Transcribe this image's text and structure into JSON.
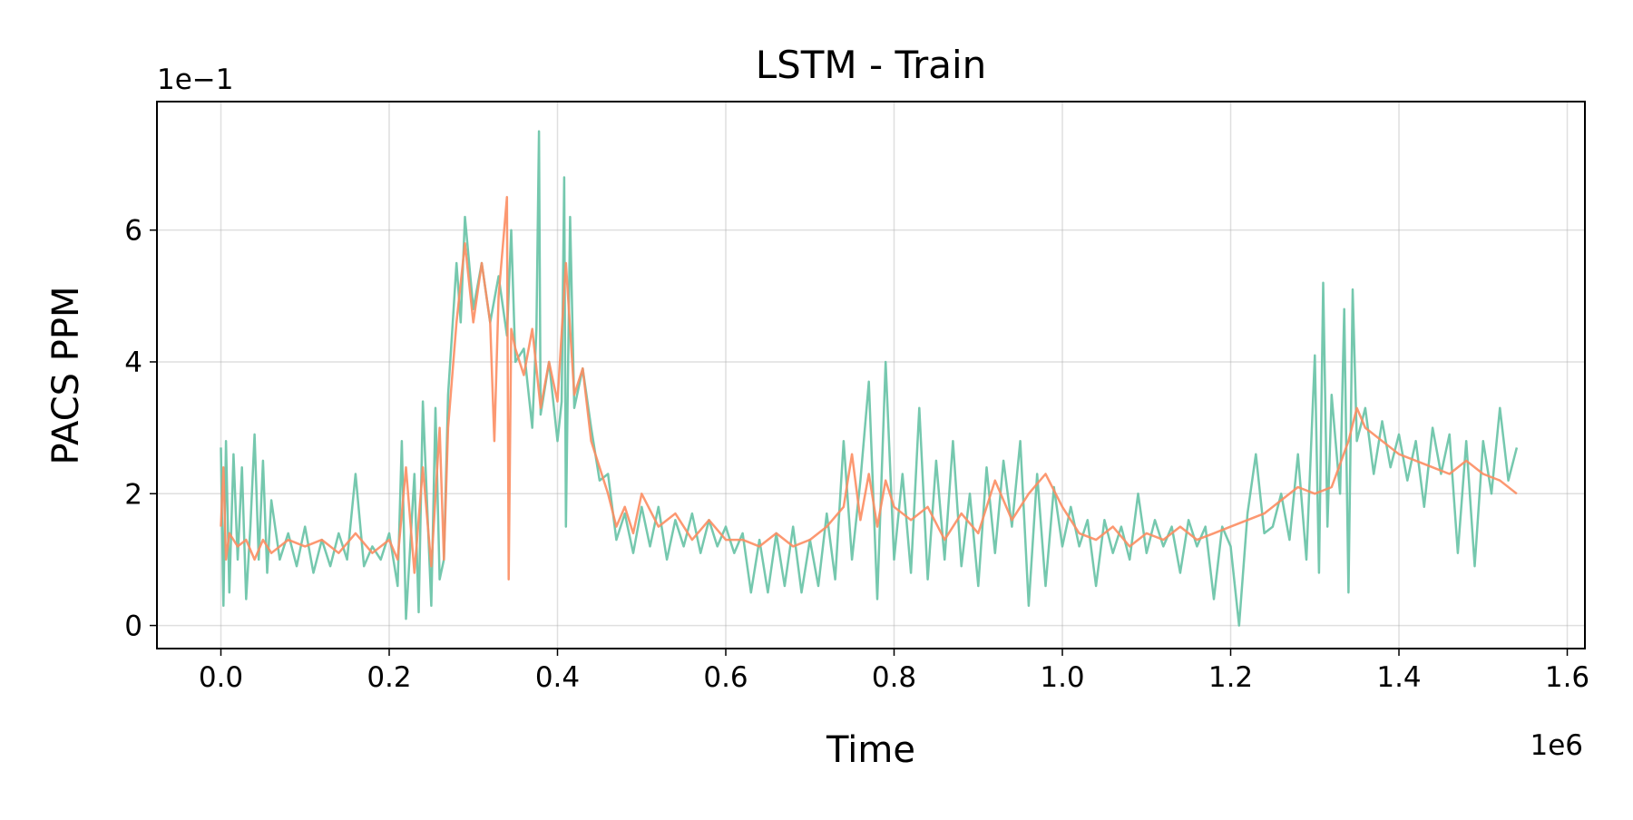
{
  "chart_data": {
    "type": "line",
    "title": "LSTM - Train",
    "xlabel": "Time",
    "ylabel": "PACS PPM",
    "x_offset_label": "1e6",
    "y_offset_label": "1e−1",
    "xlim": [
      -0.076,
      1.621
    ],
    "ylim": [
      -0.35,
      7.95
    ],
    "xticks": [
      {
        "value": 0,
        "label": "0.0"
      },
      {
        "value": 0.2,
        "label": "0.2"
      },
      {
        "value": 0.4,
        "label": "0.4"
      },
      {
        "value": 0.6,
        "label": "0.6"
      },
      {
        "value": 0.8,
        "label": "0.8"
      },
      {
        "value": 1.0,
        "label": "1.0"
      },
      {
        "value": 1.2,
        "label": "1.2"
      },
      {
        "value": 1.4,
        "label": "1.4"
      },
      {
        "value": 1.6,
        "label": "1.6"
      }
    ],
    "yticks": [
      0,
      2,
      4,
      6
    ],
    "grid": true,
    "series": [
      {
        "color": "#66c2a5",
        "x": [
          0,
          0.003,
          0.006,
          0.01,
          0.015,
          0.02,
          0.025,
          0.03,
          0.035,
          0.04,
          0.045,
          0.05,
          0.055,
          0.06,
          0.07,
          0.08,
          0.09,
          0.1,
          0.11,
          0.12,
          0.13,
          0.14,
          0.15,
          0.16,
          0.17,
          0.18,
          0.19,
          0.2,
          0.21,
          0.215,
          0.22,
          0.23,
          0.235,
          0.24,
          0.25,
          0.255,
          0.26,
          0.265,
          0.27,
          0.275,
          0.28,
          0.285,
          0.29,
          0.3,
          0.31,
          0.32,
          0.33,
          0.34,
          0.345,
          0.35,
          0.36,
          0.37,
          0.375,
          0.378,
          0.38,
          0.39,
          0.4,
          0.405,
          0.408,
          0.41,
          0.415,
          0.42,
          0.43,
          0.44,
          0.45,
          0.46,
          0.47,
          0.48,
          0.49,
          0.5,
          0.51,
          0.52,
          0.53,
          0.54,
          0.55,
          0.56,
          0.57,
          0.58,
          0.59,
          0.6,
          0.61,
          0.62,
          0.63,
          0.64,
          0.65,
          0.66,
          0.67,
          0.68,
          0.69,
          0.7,
          0.71,
          0.72,
          0.73,
          0.74,
          0.75,
          0.76,
          0.77,
          0.78,
          0.79,
          0.8,
          0.81,
          0.82,
          0.83,
          0.84,
          0.85,
          0.86,
          0.87,
          0.88,
          0.89,
          0.9,
          0.91,
          0.92,
          0.93,
          0.94,
          0.95,
          0.96,
          0.97,
          0.98,
          0.99,
          1.0,
          1.01,
          1.02,
          1.03,
          1.04,
          1.05,
          1.06,
          1.07,
          1.08,
          1.09,
          1.1,
          1.11,
          1.12,
          1.13,
          1.14,
          1.15,
          1.16,
          1.17,
          1.18,
          1.19,
          1.2,
          1.21,
          1.22,
          1.23,
          1.24,
          1.25,
          1.26,
          1.27,
          1.28,
          1.29,
          1.3,
          1.305,
          1.31,
          1.315,
          1.32,
          1.33,
          1.335,
          1.34,
          1.345,
          1.35,
          1.36,
          1.37,
          1.38,
          1.39,
          1.4,
          1.41,
          1.42,
          1.43,
          1.44,
          1.45,
          1.46,
          1.47,
          1.48,
          1.49,
          1.5,
          1.51,
          1.52,
          1.53,
          1.54
        ],
        "values": [
          2.7,
          0.3,
          2.8,
          0.5,
          2.6,
          1.0,
          2.4,
          0.4,
          1.5,
          2.9,
          1.0,
          2.5,
          0.8,
          1.9,
          1.0,
          1.4,
          0.9,
          1.5,
          0.8,
          1.3,
          0.9,
          1.4,
          1.0,
          2.3,
          0.9,
          1.2,
          1.0,
          1.4,
          0.6,
          2.8,
          0.1,
          2.3,
          0.2,
          3.4,
          0.3,
          3.3,
          0.7,
          1.0,
          3.5,
          4.5,
          5.5,
          4.6,
          6.2,
          4.8,
          5.5,
          4.6,
          5.3,
          4.4,
          6.0,
          4.0,
          4.2,
          3.0,
          4.5,
          7.5,
          3.2,
          4.0,
          2.8,
          3.4,
          6.8,
          1.5,
          6.2,
          3.3,
          3.9,
          3.0,
          2.2,
          2.3,
          1.3,
          1.7,
          1.1,
          1.8,
          1.2,
          1.8,
          1.0,
          1.6,
          1.2,
          1.7,
          1.1,
          1.6,
          1.2,
          1.5,
          1.1,
          1.4,
          0.5,
          1.3,
          0.5,
          1.4,
          0.6,
          1.5,
          0.5,
          1.3,
          0.6,
          1.7,
          0.7,
          2.8,
          1.0,
          2.2,
          3.7,
          0.4,
          4.0,
          1.0,
          2.3,
          0.8,
          3.3,
          0.7,
          2.5,
          1.0,
          2.8,
          0.9,
          2.0,
          0.6,
          2.4,
          1.1,
          2.5,
          1.5,
          2.8,
          0.3,
          2.3,
          0.6,
          2.1,
          1.2,
          1.8,
          1.2,
          1.6,
          0.6,
          1.6,
          1.1,
          1.5,
          1.0,
          2.0,
          1.1,
          1.6,
          1.2,
          1.5,
          0.8,
          1.6,
          1.2,
          1.5,
          0.4,
          1.5,
          1.2,
          0.0,
          1.7,
          2.6,
          1.4,
          1.5,
          2.0,
          1.3,
          2.6,
          1.0,
          4.1,
          0.8,
          5.2,
          1.5,
          3.5,
          2.0,
          4.8,
          0.5,
          5.1,
          2.8,
          3.3,
          2.3,
          3.1,
          2.4,
          2.9,
          2.2,
          2.8,
          1.8,
          3.0,
          2.3,
          2.9,
          1.1,
          2.8,
          0.9,
          2.8,
          2.0,
          3.3,
          2.2,
          2.7
        ]
      },
      {
        "color": "#fc8d62",
        "x": [
          0,
          0.003,
          0.006,
          0.01,
          0.02,
          0.03,
          0.04,
          0.05,
          0.06,
          0.08,
          0.1,
          0.12,
          0.14,
          0.16,
          0.18,
          0.2,
          0.21,
          0.22,
          0.23,
          0.24,
          0.25,
          0.26,
          0.265,
          0.27,
          0.28,
          0.29,
          0.3,
          0.31,
          0.32,
          0.325,
          0.33,
          0.34,
          0.342,
          0.345,
          0.35,
          0.36,
          0.37,
          0.38,
          0.39,
          0.4,
          0.41,
          0.42,
          0.43,
          0.44,
          0.45,
          0.46,
          0.47,
          0.48,
          0.49,
          0.5,
          0.52,
          0.54,
          0.56,
          0.58,
          0.6,
          0.62,
          0.64,
          0.66,
          0.68,
          0.7,
          0.72,
          0.74,
          0.75,
          0.76,
          0.77,
          0.78,
          0.79,
          0.8,
          0.82,
          0.84,
          0.86,
          0.88,
          0.9,
          0.92,
          0.94,
          0.96,
          0.98,
          1.0,
          1.02,
          1.04,
          1.06,
          1.08,
          1.1,
          1.12,
          1.14,
          1.16,
          1.18,
          1.2,
          1.22,
          1.24,
          1.26,
          1.28,
          1.3,
          1.32,
          1.34,
          1.35,
          1.36,
          1.38,
          1.4,
          1.42,
          1.44,
          1.46,
          1.48,
          1.5,
          1.52,
          1.54
        ],
        "values": [
          1.5,
          2.4,
          1.0,
          1.4,
          1.2,
          1.3,
          1.0,
          1.3,
          1.1,
          1.3,
          1.2,
          1.3,
          1.1,
          1.4,
          1.1,
          1.3,
          1.0,
          2.4,
          0.8,
          2.4,
          0.9,
          3.0,
          1.0,
          3.0,
          4.6,
          5.8,
          4.6,
          5.5,
          4.6,
          2.8,
          5.0,
          6.5,
          0.7,
          4.5,
          4.2,
          3.8,
          4.5,
          3.3,
          4.0,
          3.4,
          5.5,
          3.5,
          3.9,
          2.8,
          2.4,
          2.0,
          1.5,
          1.8,
          1.4,
          2.0,
          1.5,
          1.7,
          1.3,
          1.6,
          1.3,
          1.3,
          1.2,
          1.4,
          1.2,
          1.3,
          1.5,
          1.8,
          2.6,
          1.6,
          2.3,
          1.5,
          2.2,
          1.8,
          1.6,
          1.8,
          1.3,
          1.7,
          1.4,
          2.2,
          1.6,
          2.0,
          2.3,
          1.8,
          1.4,
          1.3,
          1.5,
          1.2,
          1.4,
          1.3,
          1.5,
          1.3,
          1.4,
          1.5,
          1.6,
          1.7,
          1.9,
          2.1,
          2.0,
          2.1,
          2.8,
          3.3,
          3.0,
          2.8,
          2.6,
          2.5,
          2.4,
          2.3,
          2.5,
          2.3,
          2.2,
          2.0
        ]
      }
    ]
  }
}
